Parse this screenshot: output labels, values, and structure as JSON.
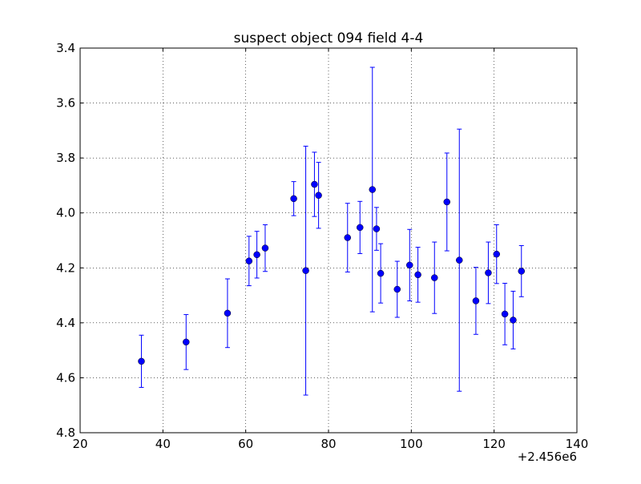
{
  "colors": {
    "marker": "#0000ff",
    "errorbar": "#0000ff",
    "grid": "#000000",
    "axes": "#000000"
  },
  "chart_data": {
    "type": "scatter",
    "title": "suspect object 094 field 4-4",
    "xlabel": "",
    "ylabel": "",
    "xlim": [
      20,
      140
    ],
    "ylim": [
      4.8,
      3.4
    ],
    "y_inverted": true,
    "grid": true,
    "x_ticks": [
      20,
      40,
      60,
      80,
      100,
      120,
      140
    ],
    "y_ticks": [
      3.4,
      3.6,
      3.8,
      4.0,
      4.2,
      4.4,
      4.6,
      4.8
    ],
    "x_tick_labels": [
      "20",
      "40",
      "60",
      "80",
      "100",
      "120",
      "140"
    ],
    "y_tick_labels": [
      "3.4",
      "3.6",
      "3.8",
      "4.0",
      "4.2",
      "4.4",
      "4.6",
      "4.8"
    ],
    "x_offset_label": "+2.456e6",
    "series": [
      {
        "marker": "circle",
        "points": [
          {
            "x": 34.8,
            "y": 4.54,
            "err": 0.095
          },
          {
            "x": 45.6,
            "y": 4.47,
            "err": 0.1
          },
          {
            "x": 55.6,
            "y": 4.365,
            "err": 0.125
          },
          {
            "x": 60.8,
            "y": 4.175,
            "err": 0.09
          },
          {
            "x": 62.7,
            "y": 4.152,
            "err": 0.085
          },
          {
            "x": 64.7,
            "y": 4.128,
            "err": 0.085
          },
          {
            "x": 71.6,
            "y": 3.948,
            "err": 0.062
          },
          {
            "x": 74.5,
            "y": 4.21,
            "err": 0.453
          },
          {
            "x": 76.6,
            "y": 3.896,
            "err": 0.117
          },
          {
            "x": 77.6,
            "y": 3.936,
            "err": 0.12
          },
          {
            "x": 84.6,
            "y": 4.09,
            "err": 0.125
          },
          {
            "x": 87.6,
            "y": 4.053,
            "err": 0.095
          },
          {
            "x": 90.6,
            "y": 3.915,
            "err": 0.445
          },
          {
            "x": 91.6,
            "y": 4.058,
            "err": 0.078
          },
          {
            "x": 92.6,
            "y": 4.22,
            "err": 0.108
          },
          {
            "x": 96.6,
            "y": 4.278,
            "err": 0.102
          },
          {
            "x": 99.6,
            "y": 4.19,
            "err": 0.13
          },
          {
            "x": 101.6,
            "y": 4.225,
            "err": 0.1
          },
          {
            "x": 105.6,
            "y": 4.236,
            "err": 0.13
          },
          {
            "x": 108.6,
            "y": 3.96,
            "err": 0.178
          },
          {
            "x": 111.6,
            "y": 4.172,
            "err": 0.477
          },
          {
            "x": 115.6,
            "y": 4.32,
            "err": 0.122
          },
          {
            "x": 118.6,
            "y": 4.218,
            "err": 0.112
          },
          {
            "x": 120.6,
            "y": 4.15,
            "err": 0.107
          },
          {
            "x": 122.6,
            "y": 4.368,
            "err": 0.112
          },
          {
            "x": 124.6,
            "y": 4.39,
            "err": 0.105
          },
          {
            "x": 126.6,
            "y": 4.212,
            "err": 0.093
          }
        ]
      }
    ]
  }
}
